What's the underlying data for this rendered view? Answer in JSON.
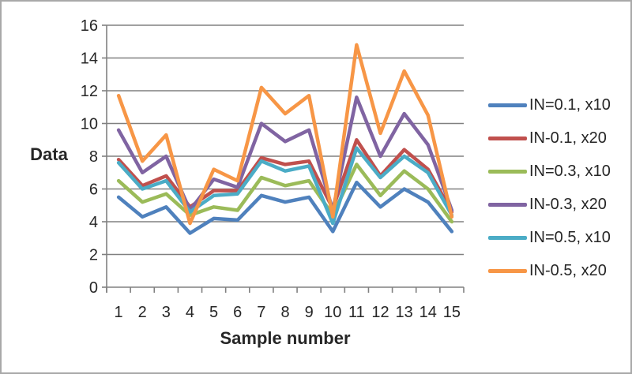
{
  "chart_data": {
    "type": "line",
    "title": "",
    "xlabel": "Sample number",
    "ylabel": "Data",
    "categories": [
      "1",
      "2",
      "3",
      "4",
      "5",
      "6",
      "7",
      "8",
      "9",
      "10",
      "11",
      "12",
      "13",
      "14",
      "15"
    ],
    "ylim": [
      0,
      16
    ],
    "ytick_step": 2,
    "grid": true,
    "legend_position": "right",
    "series": [
      {
        "name": "IN=0.1, x10",
        "color": "#4F81BD",
        "values": [
          5.5,
          4.3,
          4.9,
          3.3,
          4.2,
          4.1,
          5.6,
          5.2,
          5.5,
          3.4,
          6.4,
          4.9,
          6.0,
          5.2,
          3.4
        ]
      },
      {
        "name": "IN-0.1, x20",
        "color": "#C0504D",
        "values": [
          7.8,
          6.2,
          6.8,
          4.9,
          5.9,
          5.9,
          7.9,
          7.5,
          7.7,
          4.8,
          9.0,
          6.8,
          8.4,
          7.2,
          4.6
        ]
      },
      {
        "name": "IN=0.3, x10",
        "color": "#9BBB59",
        "values": [
          6.5,
          5.2,
          5.7,
          4.4,
          4.9,
          4.7,
          6.7,
          6.2,
          6.5,
          4.4,
          7.5,
          5.6,
          7.1,
          6.0,
          4.0
        ]
      },
      {
        "name": "IN-0.3, x20",
        "color": "#8064A2",
        "values": [
          9.6,
          7.0,
          8.0,
          4.7,
          6.6,
          6.1,
          10.0,
          8.9,
          9.6,
          4.7,
          11.6,
          8.0,
          10.6,
          8.7,
          4.7
        ]
      },
      {
        "name": "IN=0.5, x10",
        "color": "#4BACC6",
        "values": [
          7.6,
          6.0,
          6.5,
          4.6,
          5.6,
          5.7,
          7.7,
          7.1,
          7.4,
          3.9,
          8.5,
          6.7,
          8.0,
          7.0,
          4.4
        ]
      },
      {
        "name": "IN-0.5, x20",
        "color": "#F79646",
        "values": [
          11.7,
          7.7,
          9.3,
          3.9,
          7.2,
          6.5,
          12.2,
          10.6,
          11.7,
          4.3,
          14.8,
          9.4,
          13.2,
          10.5,
          4.3
        ]
      }
    ],
    "style": {
      "gridline_color": "#808080",
      "axis_color": "#808080",
      "tick_label_color": "#262626",
      "tick_label_size": 20,
      "line_width": 4.5
    }
  }
}
